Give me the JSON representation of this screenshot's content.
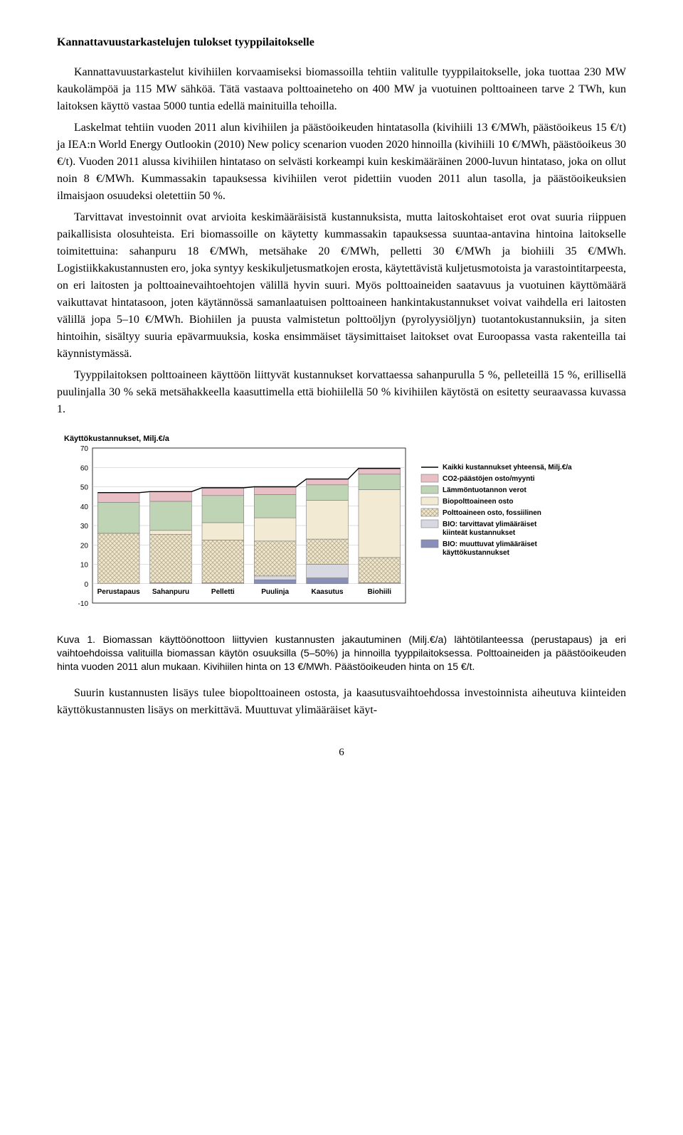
{
  "heading": "Kannattavuustarkastelujen tulokset tyyppilaitokselle",
  "paragraphs": {
    "p1": "Kannattavuustarkastelut kivihiilen korvaamiseksi biomassoilla tehtiin valitulle tyyppilaitokselle, joka tuottaa 230 MW kaukolämpöä ja 115 MW sähköä. Tätä vastaava polttoaineteho on 400 MW ja vuotuinen polttoaineen tarve 2 TWh, kun laitoksen käyttö vastaa 5000 tuntia edellä mainituilla tehoilla.",
    "p2": "Laskelmat tehtiin vuoden 2011 alun kivihiilen ja päästöoikeuden hintatasolla (kivihiili 13 €/MWh, päästöoikeus 15 €/t) ja IEA:n World Energy Outlookin (2010) New policy scenarion vuoden 2020 hinnoilla (kivihiili 10 €/MWh, päästöoikeus 30 €/t). Vuoden 2011 alussa kivihiilen hintataso on selvästi korkeampi kuin keskimääräinen 2000-luvun hintataso, joka on ollut noin 8 €/MWh. Kummassakin tapauksessa kivihiilen verot pidettiin vuoden 2011 alun tasolla, ja päästöoikeuksien ilmaisjaon osuudeksi oletettiin 50 %.",
    "p3": "Tarvittavat investoinnit ovat arvioita keskimääräisistä kustannuksista, mutta laitoskohtaiset erot ovat suuria riippuen paikallisista olosuhteista. Eri biomassoille on käytetty kummassakin tapauksessa suuntaa-antavina hintoina laitokselle toimitettuina: sahanpuru 18 €/MWh, metsähake 20 €/MWh, pelletti 30 €/MWh ja biohiili 35 €/MWh. Logistiikkakustannusten ero, joka syntyy keskikuljetusmatkojen erosta, käytettävistä kuljetusmotoista ja varastointitarpeesta, on eri laitosten ja polttoainevaihtoehtojen välillä hyvin suuri. Myös polttoaineiden saatavuus ja vuotuinen käyttömäärä vaikuttavat hintatasoon, joten käytännössä samanlaatuisen polttoaineen hankintakustannukset voivat vaihdella eri laitosten välillä jopa 5–10 €/MWh. Biohiilen ja puusta valmistetun polttoöljyn (pyrolyysiöljyn) tuotantokustannuksiin, ja siten hintoihin, sisältyy suuria epävarmuuksia, koska ensimmäiset täysimittaiset laitokset ovat Euroopassa vasta rakenteilla tai käynnistymässä.",
    "p4": "Tyyppilaitoksen polttoaineen käyttöön liittyvät kustannukset korvattaessa sahanpurulla 5 %, pelleteillä 15 %, erillisellä puulinjalla 30 % sekä metsähakkeella kaasuttimella että biohiilellä 50 % kivihiilen käytöstä on esitetty seuraavassa kuvassa 1."
  },
  "chart": {
    "type": "stacked-bar",
    "title": "Käyttökustannukset, Milj.€/a",
    "title_fontsize": 11,
    "ylim": [
      -10,
      70
    ],
    "yticks": [
      -10,
      0,
      10,
      20,
      30,
      40,
      50,
      60,
      70
    ],
    "categories": [
      "Perustapaus",
      "Sahanpuru",
      "Pelletti",
      "Puulinja",
      "Kaasutus",
      "Biohiili"
    ],
    "category_fontsize": 10,
    "series": [
      {
        "key": "bio_var",
        "label": "BIO: muuttuvat ylimääräiset käyttökustannukset",
        "color": "#8a8fb9",
        "pattern": "none"
      },
      {
        "key": "bio_fixed",
        "label": "BIO: tarvittavat ylimääräiset kiinteät kustannukset",
        "color": "#d8d8e3",
        "pattern": "none"
      },
      {
        "key": "fossil",
        "label": "Polttoaineen osto, fossiilinen",
        "color": "#efe6cf",
        "pattern": "crosshatch"
      },
      {
        "key": "bio_fuel",
        "label": "Biopolttoaineen osto",
        "color": "#f2ead3",
        "pattern": "none"
      },
      {
        "key": "heat_tax",
        "label": "Lämmöntuotannon verot",
        "color": "#bfd4b4",
        "pattern": "none"
      },
      {
        "key": "co2",
        "label": "CO2-päästöjen osto/myynti",
        "color": "#e8bfc4",
        "pattern": "none"
      }
    ],
    "data": {
      "Perustapaus": {
        "bio_var": 0,
        "bio_fixed": 0,
        "fossil": 26,
        "bio_fuel": 0,
        "heat_tax": 16,
        "co2": 5
      },
      "Sahanpuru": {
        "bio_var": 0,
        "bio_fixed": 0.5,
        "fossil": 25,
        "bio_fuel": 2,
        "heat_tax": 15,
        "co2": 5
      },
      "Pelletti": {
        "bio_var": 0,
        "bio_fixed": 0.5,
        "fossil": 22,
        "bio_fuel": 9,
        "heat_tax": 14,
        "co2": 4
      },
      "Puulinja": {
        "bio_var": 2,
        "bio_fixed": 2,
        "fossil": 18,
        "bio_fuel": 12,
        "heat_tax": 12,
        "co2": 4
      },
      "Kaasutus": {
        "bio_var": 3,
        "bio_fixed": 7,
        "fossil": 13,
        "bio_fuel": 20,
        "heat_tax": 8,
        "co2": 3
      },
      "Biohiili": {
        "bio_var": 0,
        "bio_fixed": 0.5,
        "fossil": 13,
        "bio_fuel": 35,
        "heat_tax": 8,
        "co2": 3
      }
    },
    "total_line": {
      "label": "Kaikki kustannukset yhteensä, Milj.€/a",
      "color": "#000000",
      "values": [
        47,
        47.5,
        49.5,
        50,
        54,
        59.5
      ]
    },
    "legend_fontsize": 10,
    "grid_color": "#bfbfbf",
    "axis_color": "#000000",
    "background": "#ffffff",
    "bar_width": 0.8
  },
  "caption": "Kuva 1. Biomassan käyttöönottoon liittyvien kustannusten jakautuminen (Milj.€/a) lähtötilanteessa (perustapaus)  ja  eri vaihtoehdoissa valituilla biomassan käytön osuuksilla (5–50%) ja hinnoilla tyyppilaitoksessa. Polttoaineiden ja päästöoikeuden hinta vuoden 2011 alun mukaan. Kivihiilen hinta on 13 €/MWh. Päästöoikeuden hinta on 15 €/t.",
  "afterCaption": "Suurin kustannusten lisäys tulee biopolttoaineen ostosta, ja kaasutusvaihtoehdossa investoinnista aiheutuva kiinteiden käyttökustannusten lisäys on merkittävä. Muuttuvat ylimääräiset käyt-",
  "pageNumber": "6"
}
